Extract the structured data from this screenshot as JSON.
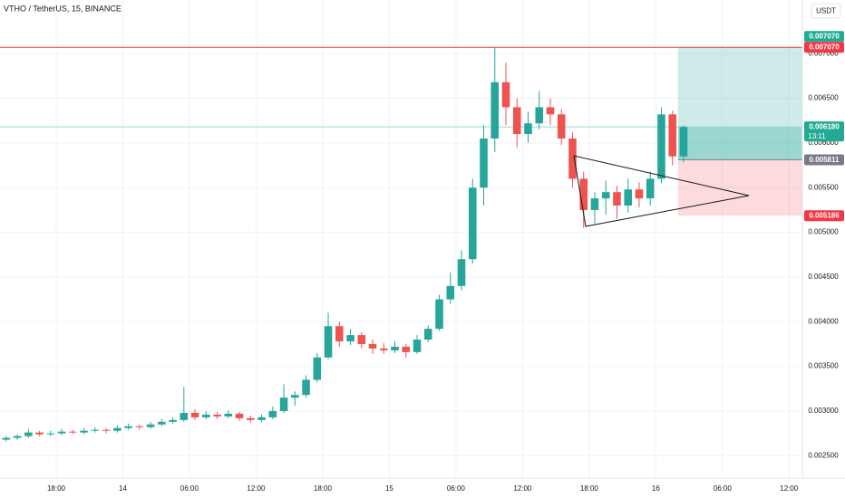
{
  "chart_data": {
    "type": "candlestick",
    "title": "VTHO / TetherUS, 15, BINANCE",
    "currency": "USDT",
    "x": [
      13,
      14,
      15,
      16,
      17,
      18,
      19,
      20,
      21,
      22,
      23,
      24,
      25,
      26,
      27,
      28,
      29,
      30,
      31,
      32,
      33,
      34,
      35,
      36,
      37,
      38,
      39,
      40,
      41,
      42,
      43,
      44,
      45,
      46,
      47,
      48,
      49,
      50,
      51,
      52,
      53,
      54,
      55,
      56,
      57,
      58,
      59,
      60,
      61,
      62,
      63,
      64,
      65,
      66,
      67,
      68,
      69,
      70,
      71,
      72,
      73,
      74
    ],
    "open": [
      0.00268,
      0.0027,
      0.00272,
      0.00276,
      0.00274,
      0.00275,
      0.00277,
      0.00276,
      0.00278,
      0.00279,
      0.00278,
      0.00281,
      0.00283,
      0.00282,
      0.00285,
      0.00288,
      0.0029,
      0.00298,
      0.00293,
      0.00296,
      0.00294,
      0.00297,
      0.00292,
      0.0029,
      0.00293,
      0.003,
      0.00315,
      0.00318,
      0.00335,
      0.0036,
      0.00395,
      0.00378,
      0.00385,
      0.00375,
      0.0037,
      0.00368,
      0.00372,
      0.00366,
      0.0038,
      0.00392,
      0.00425,
      0.0044,
      0.0047,
      0.0055,
      0.00605,
      0.00668,
      0.0064,
      0.0061,
      0.00622,
      0.0064,
      0.00632,
      0.00605,
      0.0056,
      0.00525,
      0.00538,
      0.00545,
      0.0053,
      0.00548,
      0.00538,
      0.0056,
      0.00632,
      0.00585
    ],
    "high": [
      0.00272,
      0.00274,
      0.0028,
      0.00278,
      0.00278,
      0.0028,
      0.00279,
      0.00281,
      0.00282,
      0.00281,
      0.00284,
      0.00286,
      0.00285,
      0.00288,
      0.00291,
      0.00293,
      0.00327,
      0.00302,
      0.003,
      0.00299,
      0.00301,
      0.00299,
      0.00295,
      0.00296,
      0.00305,
      0.0033,
      0.00322,
      0.0034,
      0.00365,
      0.0041,
      0.004,
      0.00392,
      0.00388,
      0.0038,
      0.00376,
      0.00378,
      0.00375,
      0.00385,
      0.00396,
      0.0043,
      0.00455,
      0.0048,
      0.0056,
      0.0062,
      0.00707,
      0.0069,
      0.0065,
      0.00635,
      0.00658,
      0.0065,
      0.00638,
      0.00612,
      0.00568,
      0.00545,
      0.00558,
      0.00552,
      0.0056,
      0.00556,
      0.00568,
      0.0064,
      0.00636,
      0.0062
    ],
    "low": [
      0.00266,
      0.00268,
      0.0027,
      0.00272,
      0.00272,
      0.00273,
      0.00274,
      0.00274,
      0.00276,
      0.00275,
      0.00276,
      0.00279,
      0.00279,
      0.0028,
      0.00283,
      0.00286,
      0.00288,
      0.0029,
      0.00291,
      0.00291,
      0.00292,
      0.00289,
      0.00287,
      0.00288,
      0.00291,
      0.00298,
      0.00306,
      0.00315,
      0.00332,
      0.00358,
      0.00372,
      0.00374,
      0.0037,
      0.00364,
      0.00364,
      0.00365,
      0.0036,
      0.00364,
      0.00377,
      0.0039,
      0.0042,
      0.00435,
      0.00465,
      0.0053,
      0.0059,
      0.0062,
      0.00595,
      0.006,
      0.00615,
      0.0062,
      0.00598,
      0.0055,
      0.00505,
      0.0051,
      0.0052,
      0.00515,
      0.00522,
      0.00528,
      0.0053,
      0.00555,
      0.00575,
      0.00578
    ],
    "close": [
      0.0027,
      0.00272,
      0.00276,
      0.00274,
      0.00275,
      0.00277,
      0.00276,
      0.00278,
      0.00279,
      0.00278,
      0.00281,
      0.00283,
      0.00282,
      0.00285,
      0.00288,
      0.0029,
      0.00298,
      0.00293,
      0.00296,
      0.00294,
      0.00297,
      0.00292,
      0.0029,
      0.00293,
      0.003,
      0.00315,
      0.00318,
      0.00335,
      0.0036,
      0.00395,
      0.00378,
      0.00385,
      0.00375,
      0.0037,
      0.00368,
      0.00372,
      0.00366,
      0.0038,
      0.00392,
      0.00425,
      0.0044,
      0.0047,
      0.0055,
      0.00605,
      0.00668,
      0.0064,
      0.0061,
      0.00622,
      0.0064,
      0.00632,
      0.00605,
      0.0056,
      0.00525,
      0.00538,
      0.00545,
      0.0053,
      0.00548,
      0.00538,
      0.0056,
      0.00632,
      0.00585,
      0.00618
    ],
    "up_color": "#26a69a",
    "down_color": "#ef5350",
    "xlim": [
      12.94,
      85.2
    ],
    "xticks": [
      {
        "value": 18,
        "label": "18:00"
      },
      {
        "value": 24,
        "label": "14"
      },
      {
        "value": 30,
        "label": "06:00"
      },
      {
        "value": 36,
        "label": "12:00"
      },
      {
        "value": 42,
        "label": "18:00"
      },
      {
        "value": 48,
        "label": "15"
      },
      {
        "value": 54,
        "label": "06:00"
      },
      {
        "value": 60,
        "label": "12:00"
      },
      {
        "value": 66,
        "label": "18:00"
      },
      {
        "value": 72,
        "label": "16"
      },
      {
        "value": 78,
        "label": "06:00"
      },
      {
        "value": 84,
        "label": "12:00"
      }
    ],
    "ylim": [
      0.00225,
      0.0076
    ],
    "yticks": [
      {
        "value": 0.0025,
        "label": "0.002500"
      },
      {
        "value": 0.003,
        "label": "0.003000"
      },
      {
        "value": 0.0035,
        "label": "0.003500"
      },
      {
        "value": 0.004,
        "label": "0.004000"
      },
      {
        "value": 0.0045,
        "label": "0.004500"
      },
      {
        "value": 0.005,
        "label": "0.005000"
      },
      {
        "value": 0.0055,
        "label": "0.005500"
      },
      {
        "value": 0.006,
        "label": "0.006000"
      },
      {
        "value": 0.0065,
        "label": "0.006500"
      },
      {
        "value": 0.007,
        "label": "0.007000"
      }
    ],
    "grid": true,
    "position": {
      "target": 0.00707,
      "entry": 0.005811,
      "stop": 0.005186,
      "current": 0.00618
    },
    "price_labels": [
      {
        "value": 0.00707,
        "label": "0.007070",
        "color": "#22ab94"
      },
      {
        "value": 0.00707,
        "label": "0.007070",
        "color": "#f23645"
      },
      {
        "value": 0.00618,
        "label": "0.006180",
        "color": "#22ab94"
      },
      {
        "value": 0.005811,
        "label": "0.005811",
        "color": "#787b86"
      },
      {
        "value": 0.005186,
        "label": "0.005186",
        "color": "#f23645"
      }
    ],
    "countdown": "13:11"
  }
}
